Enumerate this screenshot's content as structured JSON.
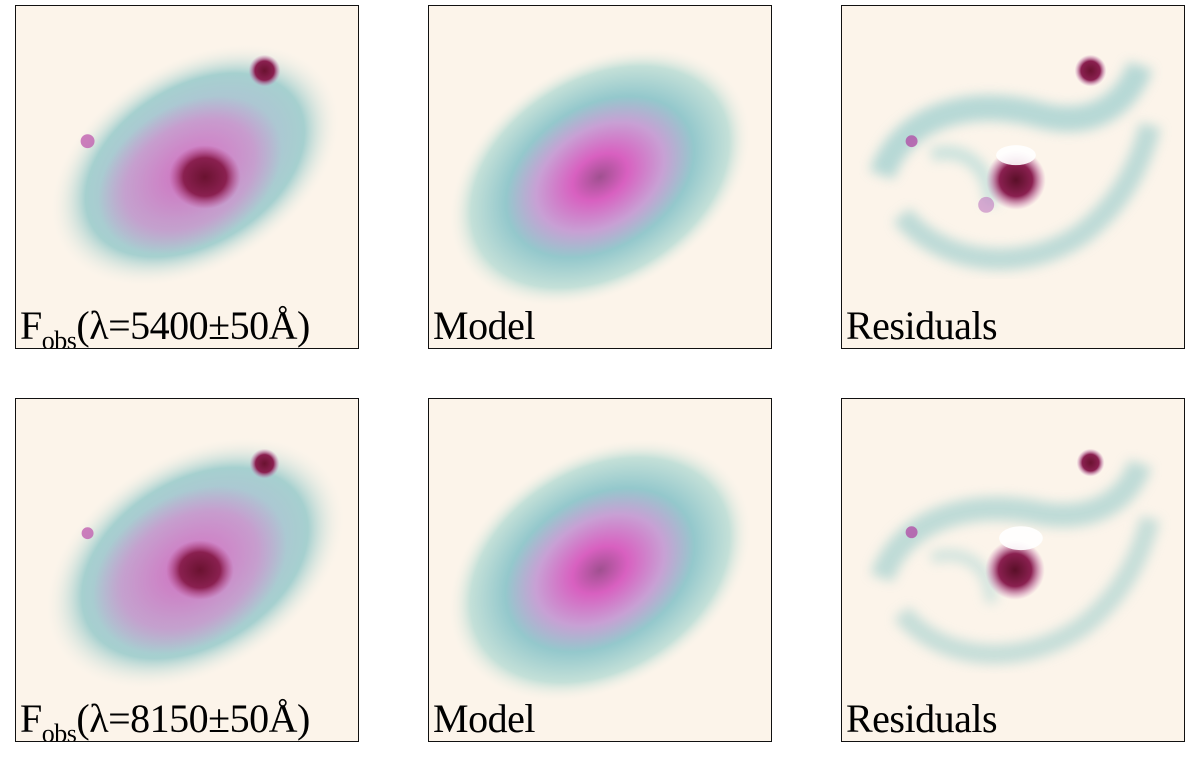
{
  "figure": {
    "rows": [
      {
        "observed": {
          "label_main": "F",
          "label_sub": "obs",
          "label_rest": "(λ=5400±50Å)"
        },
        "model": {
          "label": "Model"
        },
        "residuals": {
          "label": "Residuals"
        }
      },
      {
        "observed": {
          "label_main": "F",
          "label_sub": "obs",
          "label_rest": "(λ=8150±50Å)"
        },
        "model": {
          "label": "Model"
        },
        "residuals": {
          "label": "Residuals"
        }
      }
    ]
  },
  "colors": {
    "background": "#fcf4ea",
    "cyan": "#8cc6c8",
    "magenta": "#d870c4",
    "core": "#7a1838"
  }
}
